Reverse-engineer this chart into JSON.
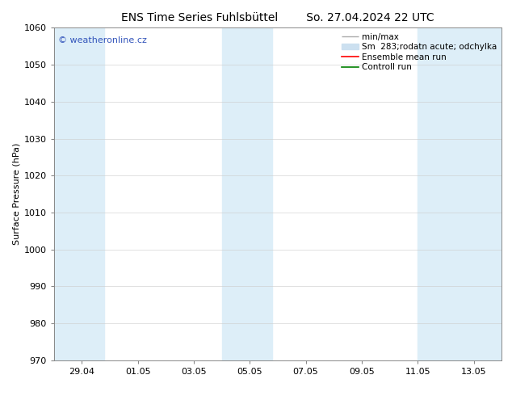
{
  "title_left": "ENS Time Series Fuhlsbüttel",
  "title_right": "So. 27.04.2024 22 UTC",
  "ylabel": "Surface Pressure (hPa)",
  "ylim": [
    970,
    1060
  ],
  "yticks": [
    970,
    980,
    990,
    1000,
    1010,
    1020,
    1030,
    1040,
    1050,
    1060
  ],
  "xtick_labels": [
    "29.04",
    "01.05",
    "03.05",
    "05.05",
    "07.05",
    "09.05",
    "11.05",
    "13.05"
  ],
  "background_color": "#ffffff",
  "plot_bg_color": "#ffffff",
  "shaded_band_color": "#ddeef8",
  "watermark_text": "© weatheronline.cz",
  "watermark_color": "#3355bb",
  "title_fontsize": 10,
  "axis_label_fontsize": 8,
  "tick_fontsize": 8,
  "legend_fontsize": 7.5,
  "grid_color": "#cccccc",
  "grid_alpha": 0.7,
  "border_color": "#888888",
  "minmax_color": "#aaaaaa",
  "band_color": "#cce0f0",
  "ensemble_color": "#ff0000",
  "control_color": "#008000"
}
